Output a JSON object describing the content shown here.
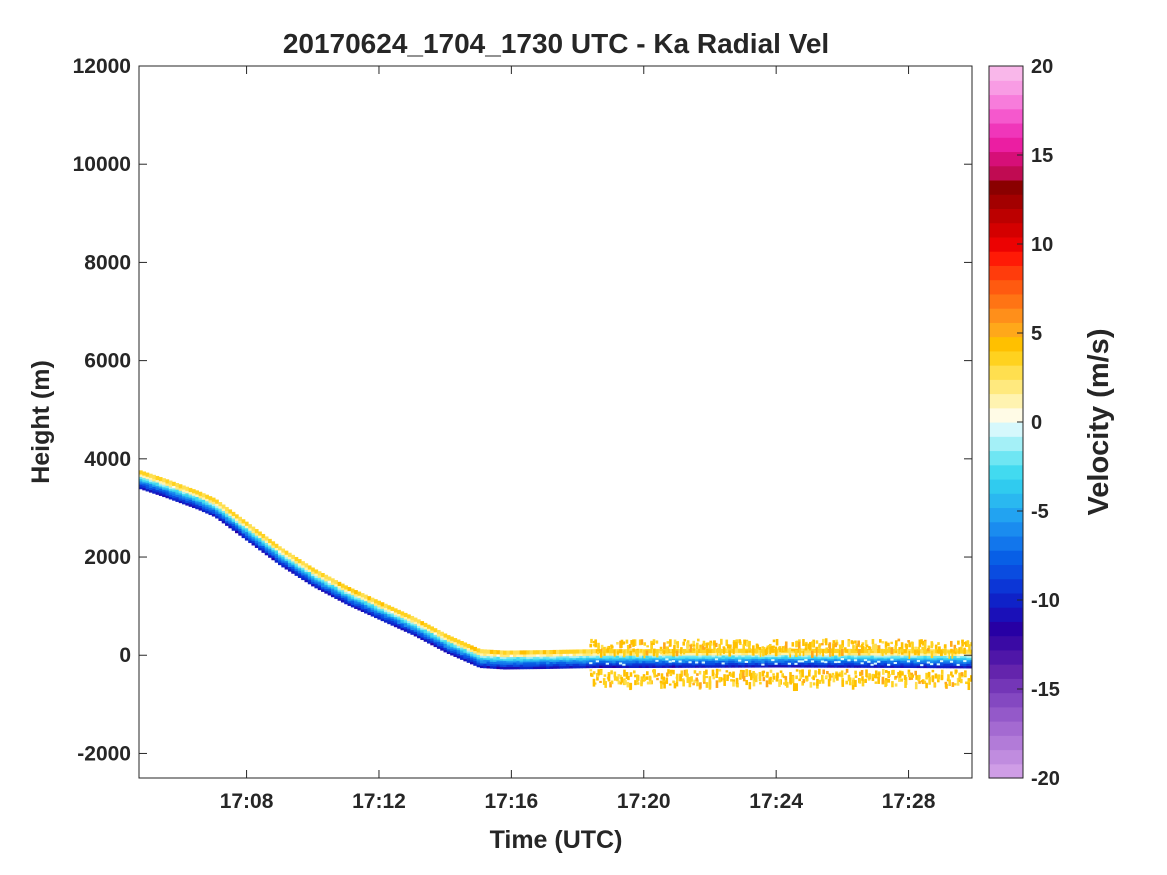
{
  "chart_data": {
    "type": "heatmap",
    "title": "20170624_1704_1730 UTC - Ka Radial Vel",
    "xlabel": "Time (UTC)",
    "ylabel": "Height (m)",
    "xlim": [
      "17:04:45",
      "17:29:55"
    ],
    "ylim": [
      -2500,
      12000
    ],
    "xticks": [
      "17:08",
      "17:12",
      "17:16",
      "17:20",
      "17:24",
      "17:28"
    ],
    "yticks": [
      -2000,
      0,
      2000,
      4000,
      6000,
      8000,
      10000,
      12000
    ],
    "grid": false,
    "colorbar": {
      "label": "Velocity (m/s)",
      "range": [
        -20,
        20
      ],
      "ticks": [
        -20,
        -15,
        -10,
        -5,
        0,
        5,
        10,
        15,
        20
      ],
      "colors": [
        "#cf9de6",
        "#c08cdf",
        "#b27bd8",
        "#a46ad1",
        "#9459c9",
        "#8448c1",
        "#7436b7",
        "#6424ac",
        "#4f16a8",
        "#3a0aa4",
        "#2700a4",
        "#1a10b8",
        "#0f22c8",
        "#0c36d6",
        "#0a4ce0",
        "#085fe6",
        "#1276ec",
        "#1a8cef",
        "#22a3f1",
        "#2ab8f0",
        "#30cbef",
        "#42daf0",
        "#6fe6f3",
        "#a4f0f7",
        "#d6f8fc",
        "#fffbe6",
        "#fff3b0",
        "#ffe97e",
        "#ffdf4f",
        "#ffd21f",
        "#ffc000",
        "#ffa81a",
        "#ff8f1a",
        "#ff7414",
        "#ff5a10",
        "#ff3c0c",
        "#ff1a06",
        "#ec0202",
        "#d40000",
        "#bc0000",
        "#a30000",
        "#8a0000",
        "#c00b52",
        "#d60f78",
        "#eb1ea2",
        "#f036ba",
        "#f558cd",
        "#f77cdb",
        "#f89ce4",
        "#f9b7ea"
      ]
    },
    "series": [
      {
        "x": [
          "17:04:45",
          "17:05:30",
          "17:06:30",
          "17:07:00",
          "17:08:00",
          "17:09:00",
          "17:10:00",
          "17:11:00",
          "17:12:00",
          "17:13:00",
          "17:14:00",
          "17:15:00",
          "17:15:45",
          "17:17:00",
          "17:18:30",
          "17:20:00",
          "17:24:00",
          "17:28:00",
          "17:29:55"
        ],
        "y": [
          3520,
          3350,
          3100,
          2950,
          2450,
          1950,
          1520,
          1160,
          850,
          540,
          180,
          -120,
          -150,
          -140,
          -120,
          -120,
          -110,
          -120,
          -130
        ],
        "value": [
          -8,
          -8,
          -8,
          -8,
          -8,
          -9,
          -9,
          -9,
          -8,
          -8,
          -8,
          -8,
          -8,
          -7,
          -7,
          -7,
          -6,
          -6,
          -6
        ]
      }
    ]
  }
}
